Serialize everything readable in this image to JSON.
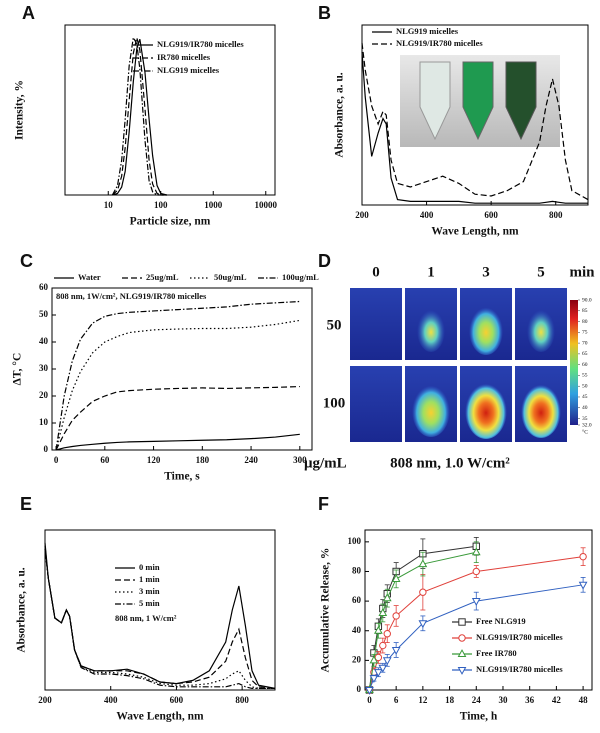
{
  "chart_data": [
    {
      "panel": "A",
      "type": "line",
      "xlabel": "Particle size, nm",
      "ylabel": "Intensity, %",
      "xscale": "log",
      "xlim": [
        1.5,
        15000
      ],
      "xticks": [
        10,
        100,
        1000,
        10000
      ],
      "ylim": [
        0,
        108
      ],
      "legend": "upper right",
      "x": [
        12,
        15,
        18,
        21,
        25,
        30,
        35,
        40,
        50,
        60,
        70,
        85,
        100,
        130
      ],
      "series": [
        {
          "name": "NLG919/IR780 micelles",
          "color": "#000000",
          "dash": "solid",
          "values": [
            0,
            1,
            5,
            15,
            40,
            72,
            93,
            99,
            78,
            48,
            25,
            6,
            1,
            0
          ]
        },
        {
          "name": "IR780 micelles",
          "color": "#000000",
          "dash": "dashed",
          "values": [
            0,
            3,
            12,
            30,
            60,
            90,
            100,
            92,
            55,
            22,
            7,
            1,
            0,
            0
          ]
        },
        {
          "name": "NLG919 micelles",
          "color": "#000000",
          "dash": "dashdot",
          "values": [
            0,
            6,
            22,
            48,
            82,
            100,
            96,
            80,
            35,
            9,
            2,
            0,
            0,
            0
          ]
        }
      ]
    },
    {
      "panel": "B",
      "type": "line",
      "xlabel": "Wave Length, nm",
      "ylabel": "Absorbance, a. u.",
      "xlim": [
        200,
        900
      ],
      "xticks": [
        200,
        400,
        600,
        800
      ],
      "ylim": [
        0,
        1
      ],
      "legend": "upper left",
      "x": [
        200,
        210,
        230,
        250,
        265,
        275,
        290,
        310,
        350,
        400,
        450,
        500,
        550,
        600,
        650,
        700,
        750,
        770,
        790,
        810,
        830,
        850,
        900
      ],
      "series": [
        {
          "name": "NLG919 micelles",
          "color": "#000000",
          "dash": "solid",
          "values": [
            0.85,
            0.6,
            0.27,
            0.4,
            0.48,
            0.45,
            0.15,
            0.03,
            0.02,
            0.02,
            0.02,
            0.02,
            0.01,
            0.01,
            0.01,
            0.01,
            0.01,
            0.015,
            0.02,
            0.015,
            0.01,
            0.01,
            0.01
          ]
        },
        {
          "name": "NLG919/IR780 micelles",
          "color": "#000000",
          "dash": "dashed",
          "values": [
            0.9,
            0.75,
            0.55,
            0.45,
            0.52,
            0.5,
            0.25,
            0.12,
            0.1,
            0.13,
            0.16,
            0.12,
            0.06,
            0.05,
            0.08,
            0.13,
            0.35,
            0.55,
            0.7,
            0.55,
            0.25,
            0.08,
            0.03
          ]
        }
      ]
    },
    {
      "panel": "C",
      "type": "line",
      "xlabel": "Time, s",
      "ylabel": "ΔT, °C",
      "xlim": [
        -5,
        315
      ],
      "xticks": [
        0,
        60,
        120,
        180,
        240,
        300
      ],
      "ylim": [
        0,
        60
      ],
      "yticks": [
        0,
        10,
        20,
        30,
        40,
        50,
        60
      ],
      "legend": "top",
      "annotation": "808 nm, 1W/cm², NLG919/IR780 micelles",
      "x": [
        0,
        10,
        20,
        30,
        45,
        60,
        75,
        90,
        120,
        150,
        180,
        210,
        240,
        270,
        300
      ],
      "series": [
        {
          "name": "Water",
          "color": "#000000",
          "dash": "solid",
          "values": [
            0,
            0.8,
            1.3,
            1.7,
            2.1,
            2.5,
            2.8,
            3,
            3.2,
            3.4,
            3.6,
            3.8,
            4.2,
            4.8,
            5.8
          ]
        },
        {
          "name": "25ug/mL",
          "color": "#000000",
          "dash": "dashed",
          "values": [
            0,
            6,
            11,
            14,
            18,
            20,
            21.5,
            22,
            22.5,
            22.8,
            23,
            22.8,
            23,
            23.2,
            23.5
          ]
        },
        {
          "name": "50ug/mL",
          "color": "#000000",
          "dash": "dotted",
          "values": [
            0,
            12,
            22,
            29,
            36,
            40,
            42,
            43.5,
            44.5,
            44.8,
            45,
            45,
            45.5,
            46.5,
            48
          ]
        },
        {
          "name": "100ug/mL",
          "color": "#000000",
          "dash": "dashdot",
          "values": [
            0,
            20,
            33,
            41,
            47,
            49.5,
            50.5,
            51,
            51.5,
            52,
            52.5,
            53,
            54,
            54.5,
            55
          ]
        }
      ]
    },
    {
      "panel": "E",
      "type": "line",
      "xlabel": "Wave Length, nm",
      "ylabel": "Absorbance, a. u.",
      "xlim": [
        200,
        900
      ],
      "xticks": [
        200,
        400,
        600,
        800
      ],
      "ylim": [
        0,
        1
      ],
      "legend": "right",
      "annotation": "808 nm, 1 W/cm²",
      "x": [
        200,
        210,
        230,
        250,
        265,
        275,
        290,
        310,
        350,
        400,
        450,
        500,
        550,
        600,
        650,
        700,
        750,
        770,
        790,
        810,
        830,
        850,
        900
      ],
      "series": [
        {
          "name": "0 min",
          "color": "#000000",
          "dash": "solid",
          "values": [
            0.92,
            0.7,
            0.45,
            0.42,
            0.5,
            0.46,
            0.25,
            0.15,
            0.12,
            0.12,
            0.13,
            0.1,
            0.05,
            0.04,
            0.06,
            0.12,
            0.3,
            0.5,
            0.65,
            0.4,
            0.12,
            0.03,
            0.01
          ]
        },
        {
          "name": "1 min",
          "color": "#000000",
          "dash": "dashed",
          "values": [
            0.9,
            0.7,
            0.45,
            0.42,
            0.5,
            0.46,
            0.25,
            0.15,
            0.12,
            0.12,
            0.12,
            0.1,
            0.05,
            0.04,
            0.05,
            0.08,
            0.18,
            0.3,
            0.38,
            0.2,
            0.06,
            0.02,
            0.01
          ]
        },
        {
          "name": "3 min",
          "color": "#000000",
          "dash": "dotted",
          "values": [
            0.88,
            0.7,
            0.45,
            0.42,
            0.5,
            0.46,
            0.25,
            0.14,
            0.11,
            0.11,
            0.1,
            0.08,
            0.04,
            0.03,
            0.03,
            0.04,
            0.07,
            0.1,
            0.12,
            0.06,
            0.02,
            0.01,
            0.01
          ]
        },
        {
          "name": "5 min",
          "color": "#000000",
          "dash": "dashdot",
          "values": [
            0.88,
            0.7,
            0.45,
            0.42,
            0.5,
            0.46,
            0.25,
            0.14,
            0.1,
            0.1,
            0.09,
            0.07,
            0.03,
            0.02,
            0.02,
            0.02,
            0.02,
            0.03,
            0.04,
            0.02,
            0.01,
            0.01,
            0.01
          ]
        }
      ]
    },
    {
      "panel": "F",
      "type": "scatter",
      "xlabel": "Time, h",
      "ylabel": "Accumulative Release, %",
      "xlim": [
        -1,
        50
      ],
      "xticks": [
        0,
        6,
        12,
        18,
        24,
        30,
        36,
        42,
        48
      ],
      "ylim": [
        0,
        108
      ],
      "yticks": [
        0,
        20,
        40,
        60,
        80,
        100
      ],
      "legend": "lower right",
      "series": [
        {
          "name": "Free NLG919",
          "color": "#333333",
          "marker": "square",
          "x": [
            0,
            1,
            2,
            3,
            4,
            6,
            12,
            24
          ],
          "values": [
            0,
            25,
            43,
            55,
            65,
            80,
            92,
            97
          ],
          "errors": [
            0,
            5,
            5,
            6,
            6,
            6,
            10,
            6
          ]
        },
        {
          "name": "NLG919/IR780 micelles",
          "color": "#e0403a",
          "marker": "circle",
          "x": [
            0,
            1,
            2,
            3,
            4,
            6,
            12,
            24,
            48
          ],
          "values": [
            0,
            12,
            22,
            30,
            38,
            50,
            66,
            80,
            90
          ],
          "errors": [
            0,
            3,
            4,
            5,
            6,
            7,
            12,
            4,
            6
          ]
        },
        {
          "name": "Free IR780",
          "color": "#3a9a3a",
          "marker": "triangle",
          "x": [
            0,
            1,
            2,
            3,
            4,
            6,
            12,
            24
          ],
          "values": [
            0,
            20,
            40,
            52,
            62,
            75,
            85,
            93
          ],
          "errors": [
            0,
            4,
            5,
            6,
            6,
            6,
            8,
            7
          ]
        },
        {
          "name": "NLG919/IR780 micelles",
          "color": "#3060c0",
          "marker": "triangle-down",
          "x": [
            0,
            1,
            2,
            3,
            4,
            6,
            12,
            24,
            48
          ],
          "values": [
            0,
            8,
            12,
            15,
            20,
            27,
            45,
            60,
            71
          ],
          "errors": [
            0,
            2,
            3,
            3,
            4,
            5,
            5,
            6,
            5
          ]
        }
      ]
    }
  ],
  "thermal_image": {
    "panel": "D",
    "times": [
      "0",
      "1",
      "3",
      "5"
    ],
    "time_unit": "min",
    "concentrations": [
      "50",
      "100"
    ],
    "concentration_unit": "μg/mL",
    "caption": "808 nm, 1.0 W/cm²",
    "colorbar": {
      "lim": [
        32,
        90
      ],
      "ticks": [
        {
          "value": 90,
          "label": "90.0"
        },
        85,
        80,
        75,
        70,
        65,
        60,
        55,
        50,
        45,
        40,
        35,
        {
          "value": 32,
          "label": "32.0"
        }
      ],
      "unit": "°C"
    }
  }
}
